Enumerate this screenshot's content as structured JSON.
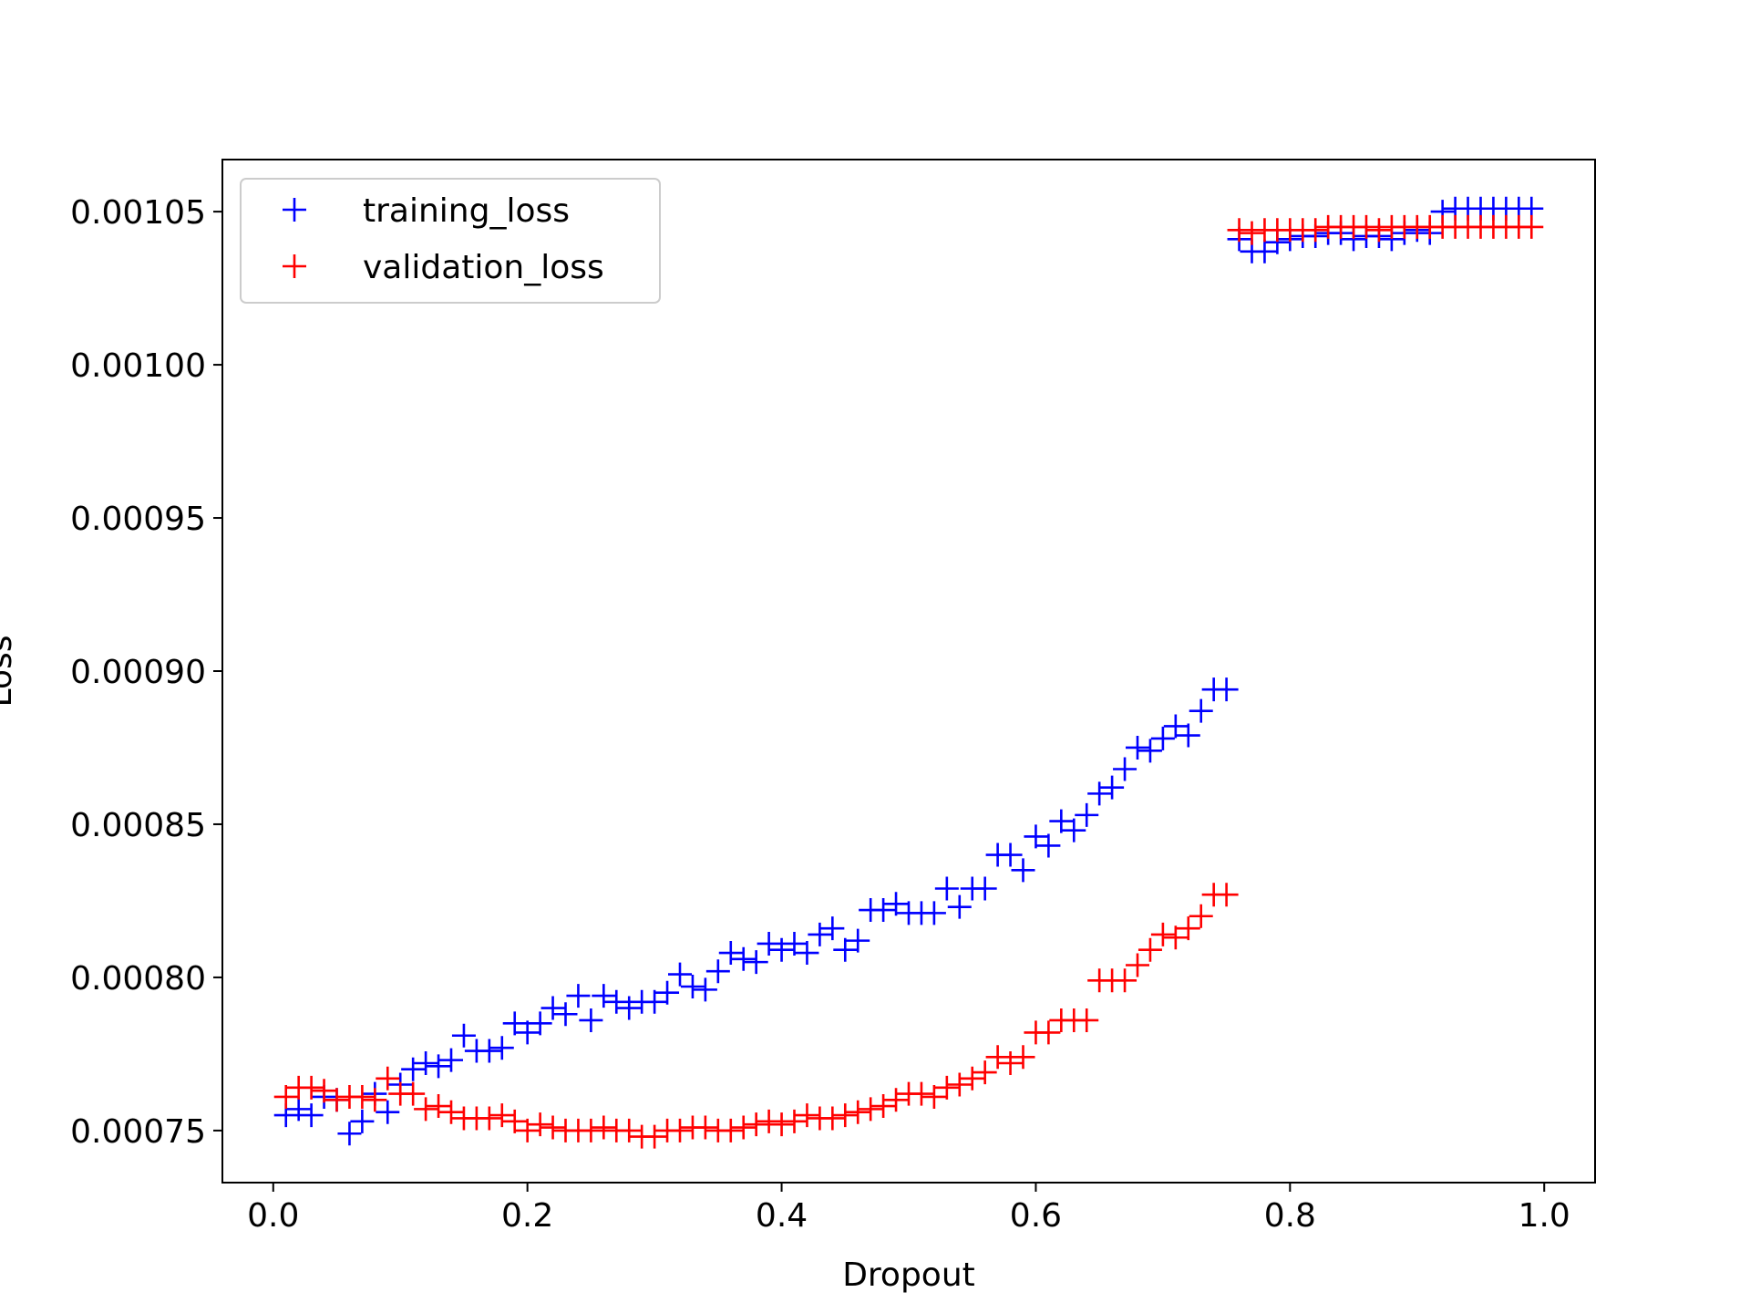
{
  "chart_data": {
    "type": "scatter",
    "title": "",
    "xlabel": "Dropout",
    "ylabel": "Loss",
    "xlim": [
      -0.04,
      1.04
    ],
    "ylim": [
      0.000733,
      0.001067
    ],
    "xticks": [
      0.0,
      0.2,
      0.4,
      0.6,
      0.8,
      1.0
    ],
    "xtick_labels": [
      "0.0",
      "0.2",
      "0.4",
      "0.6",
      "0.8",
      "1.0"
    ],
    "yticks": [
      0.00075,
      0.0008,
      0.00085,
      0.0009,
      0.00095,
      0.001,
      0.00105
    ],
    "ytick_labels": [
      "0.00075",
      "0.00080",
      "0.00085",
      "0.00090",
      "0.00095",
      "0.00100",
      "0.00105"
    ],
    "grid": false,
    "legend_position": "upper-left",
    "marker": "+",
    "series": [
      {
        "name": "training_loss",
        "color": "#0000ff",
        "x": [
          0.01,
          0.02,
          0.03,
          0.04,
          0.05,
          0.06,
          0.07,
          0.08,
          0.09,
          0.1,
          0.11,
          0.12,
          0.13,
          0.14,
          0.15,
          0.16,
          0.17,
          0.18,
          0.19,
          0.2,
          0.21,
          0.22,
          0.23,
          0.24,
          0.25,
          0.26,
          0.27,
          0.28,
          0.29,
          0.3,
          0.31,
          0.32,
          0.33,
          0.34,
          0.35,
          0.36,
          0.37,
          0.38,
          0.39,
          0.4,
          0.41,
          0.42,
          0.43,
          0.44,
          0.45,
          0.46,
          0.47,
          0.48,
          0.49,
          0.5,
          0.51,
          0.52,
          0.53,
          0.54,
          0.55,
          0.56,
          0.57,
          0.58,
          0.59,
          0.6,
          0.61,
          0.62,
          0.63,
          0.64,
          0.65,
          0.66,
          0.67,
          0.68,
          0.69,
          0.7,
          0.71,
          0.72,
          0.73,
          0.74,
          0.75,
          0.76,
          0.77,
          0.78,
          0.79,
          0.8,
          0.81,
          0.82,
          0.83,
          0.84,
          0.85,
          0.86,
          0.87,
          0.88,
          0.89,
          0.9,
          0.91,
          0.92,
          0.93,
          0.94,
          0.95,
          0.96,
          0.97,
          0.98,
          0.99
        ],
        "y": [
          0.000755,
          0.000757,
          0.000755,
          0.000761,
          0.00076,
          0.000749,
          0.000753,
          0.000762,
          0.000756,
          0.000765,
          0.00077,
          0.000772,
          0.000771,
          0.000773,
          0.000781,
          0.000776,
          0.000776,
          0.000777,
          0.000785,
          0.000782,
          0.000785,
          0.00079,
          0.000788,
          0.000794,
          0.000786,
          0.000794,
          0.000792,
          0.00079,
          0.000792,
          0.000792,
          0.000795,
          0.000801,
          0.000797,
          0.000796,
          0.000802,
          0.000808,
          0.000806,
          0.000805,
          0.000811,
          0.000809,
          0.000811,
          0.000808,
          0.000814,
          0.000816,
          0.000809,
          0.000812,
          0.000822,
          0.000822,
          0.000824,
          0.000821,
          0.000821,
          0.000821,
          0.000829,
          0.000823,
          0.000829,
          0.000829,
          0.00084,
          0.00084,
          0.000835,
          0.000846,
          0.000843,
          0.000851,
          0.000848,
          0.000853,
          0.00086,
          0.000862,
          0.000868,
          0.000875,
          0.000874,
          0.000878,
          0.000882,
          0.000879,
          0.000887,
          0.000894,
          0.000894,
          0.001041,
          0.001037,
          0.001037,
          0.00104,
          0.001041,
          0.001042,
          0.001042,
          0.001043,
          0.001043,
          0.001041,
          0.001042,
          0.001042,
          0.001041,
          0.001043,
          0.001044,
          0.001043,
          0.00105,
          0.001051,
          0.001051,
          0.001051,
          0.001051,
          0.001051,
          0.001051,
          0.001051
        ]
      },
      {
        "name": "validation_loss",
        "color": "#ff0000",
        "x": [
          0.01,
          0.02,
          0.03,
          0.04,
          0.05,
          0.06,
          0.07,
          0.08,
          0.09,
          0.1,
          0.11,
          0.12,
          0.13,
          0.14,
          0.15,
          0.16,
          0.17,
          0.18,
          0.19,
          0.2,
          0.21,
          0.22,
          0.23,
          0.24,
          0.25,
          0.26,
          0.27,
          0.28,
          0.29,
          0.3,
          0.31,
          0.32,
          0.33,
          0.34,
          0.35,
          0.36,
          0.37,
          0.38,
          0.39,
          0.4,
          0.41,
          0.42,
          0.43,
          0.44,
          0.45,
          0.46,
          0.47,
          0.48,
          0.49,
          0.5,
          0.51,
          0.52,
          0.53,
          0.54,
          0.55,
          0.56,
          0.57,
          0.58,
          0.59,
          0.6,
          0.61,
          0.62,
          0.63,
          0.64,
          0.65,
          0.66,
          0.67,
          0.68,
          0.69,
          0.7,
          0.71,
          0.72,
          0.73,
          0.74,
          0.75,
          0.76,
          0.77,
          0.78,
          0.79,
          0.8,
          0.81,
          0.82,
          0.83,
          0.84,
          0.85,
          0.86,
          0.87,
          0.88,
          0.89,
          0.9,
          0.91,
          0.92,
          0.93,
          0.94,
          0.95,
          0.96,
          0.97,
          0.98,
          0.99
        ],
        "y": [
          0.000761,
          0.000764,
          0.000764,
          0.000763,
          0.00076,
          0.000761,
          0.000761,
          0.00076,
          0.000767,
          0.000762,
          0.000762,
          0.000757,
          0.000758,
          0.000756,
          0.000754,
          0.000754,
          0.000754,
          0.000755,
          0.000753,
          0.00075,
          0.000752,
          0.000751,
          0.00075,
          0.00075,
          0.00075,
          0.000751,
          0.00075,
          0.00075,
          0.000748,
          0.000748,
          0.00075,
          0.00075,
          0.000751,
          0.000751,
          0.00075,
          0.00075,
          0.000751,
          0.000752,
          0.000753,
          0.000752,
          0.000753,
          0.000755,
          0.000754,
          0.000754,
          0.000755,
          0.000756,
          0.000757,
          0.000758,
          0.00076,
          0.000762,
          0.000762,
          0.000761,
          0.000764,
          0.000765,
          0.000767,
          0.000769,
          0.000774,
          0.000772,
          0.000774,
          0.000782,
          0.000782,
          0.000786,
          0.000786,
          0.000786,
          0.000799,
          0.000799,
          0.000799,
          0.000804,
          0.000809,
          0.000814,
          0.000813,
          0.000816,
          0.00082,
          0.000827,
          0.000827,
          0.001044,
          0.001043,
          0.001044,
          0.001044,
          0.001044,
          0.001044,
          0.001044,
          0.001045,
          0.001045,
          0.001045,
          0.001045,
          0.001044,
          0.001045,
          0.001045,
          0.001045,
          0.001045,
          0.001045,
          0.001045,
          0.001045,
          0.001045,
          0.001045,
          0.001045,
          0.001045,
          0.001045
        ]
      }
    ]
  }
}
